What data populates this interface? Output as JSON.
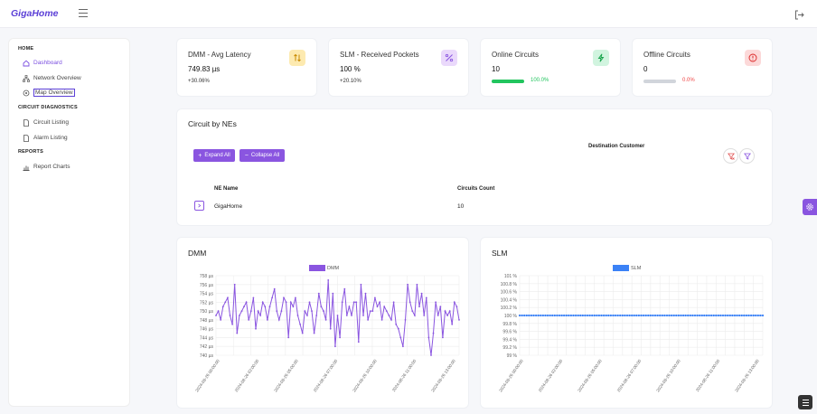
{
  "app": {
    "logo": "GigaHome"
  },
  "sidebar": {
    "sections": [
      {
        "title": "HOME",
        "items": [
          {
            "label": "Dashboard",
            "icon": "home-icon"
          },
          {
            "label": "Network Overview",
            "icon": "network-icon"
          },
          {
            "label": "Map Overview",
            "icon": "map-pin-icon"
          }
        ]
      },
      {
        "title": "CIRCUIT DIAGNOSTICS",
        "items": [
          {
            "label": "Circuit Listing",
            "icon": "file-icon"
          },
          {
            "label": "Alarm Listing",
            "icon": "file-icon"
          }
        ]
      },
      {
        "title": "REPORTS",
        "items": [
          {
            "label": "Report Charts",
            "icon": "bar-chart-icon"
          }
        ]
      }
    ]
  },
  "kpis": [
    {
      "title": "DMM - Avg Latency",
      "value": "749.83 µs",
      "sub": "+30.06%",
      "icon": "sort-arrows-icon",
      "icon_bg": "#fdeab0",
      "icon_color": "#c98a00"
    },
    {
      "title": "SLM - Received Pockets",
      "value": "100 %",
      "sub": "+20.10%",
      "icon": "percent-icon",
      "icon_bg": "#ead9fb",
      "icon_color": "#8a55e0"
    },
    {
      "title": "Online Circuits",
      "value": "10",
      "pct": "100.0%",
      "fill": 1.0,
      "bar_color": "#22c55e",
      "pct_color": "#22c55e",
      "icon": "lightning-icon",
      "icon_bg": "#d1f4df",
      "icon_color": "#16a34a"
    },
    {
      "title": "Offline Circuits",
      "value": "0",
      "pct": "0.0%",
      "fill": 0.0,
      "bar_color": "#ef4444",
      "pct_color": "#ef4444",
      "icon": "alert-circle-icon",
      "icon_bg": "#fcd9d9",
      "icon_color": "#dc2626"
    }
  ],
  "circuits": {
    "title": "Circuit by NEs",
    "expand_label": "Expand All",
    "collapse_label": "Collapse All",
    "destination_label": "Destination Customer",
    "columns": [
      "NE Name",
      "Circuits Count"
    ],
    "rows": [
      {
        "ne": "GigaHome",
        "count": "10"
      }
    ]
  },
  "colors": {
    "accent": "#8a55e0",
    "dmm_line": "#8a55e0",
    "slm_line": "#3b82f6"
  },
  "chart_data": [
    {
      "type": "line",
      "title": "DMM",
      "legend": "top-center",
      "series": [
        {
          "name": "DMM",
          "values": [
            749,
            750,
            748,
            751,
            752,
            753,
            749,
            747,
            756,
            745,
            749,
            750,
            751,
            752,
            748,
            750,
            753,
            746,
            750,
            749,
            752,
            751,
            748,
            751,
            753,
            755,
            750,
            748,
            750,
            753,
            752,
            744,
            752,
            751,
            753,
            749,
            747,
            745,
            750,
            749,
            752,
            750,
            745,
            749,
            754,
            751,
            750,
            748,
            757,
            746,
            754,
            742,
            749,
            744,
            752,
            755,
            749,
            751,
            749,
            752,
            752,
            743,
            756,
            749,
            754,
            748,
            750,
            750,
            753,
            751,
            752,
            748,
            751,
            750,
            749,
            748,
            752,
            747,
            746,
            744,
            742,
            748,
            756,
            752,
            750,
            749,
            756,
            751,
            754,
            749,
            753,
            744,
            740,
            745,
            752,
            749,
            751,
            744,
            750,
            749,
            750,
            747,
            752,
            751,
            748
          ]
        }
      ],
      "xlabels": [
        "2024-08-26 00:00:00",
        "2024-08-26 02:00:00",
        "2024-08-26 05:00:00",
        "2024-08-26 07:00:00",
        "2024-08-26 10:00:00",
        "2024-08-26 11:00:00",
        "2024-08-26 13:00:00"
      ],
      "yticks": [
        "758 µs",
        "756 µs",
        "754 µs",
        "752 µs",
        "750 µs",
        "748 µs",
        "746 µs",
        "744 µs",
        "742 µs",
        "740 µs"
      ],
      "ylim": [
        740,
        758
      ]
    },
    {
      "type": "line",
      "title": "SLM",
      "legend": "top-center",
      "series": [
        {
          "name": "SLM",
          "values": [
            100,
            100,
            100,
            100,
            100,
            100,
            100,
            100,
            100,
            100,
            100,
            100,
            100,
            100,
            100,
            100,
            100,
            100,
            100,
            100,
            100,
            100,
            100,
            100,
            100,
            100,
            100,
            100,
            100,
            100,
            100,
            100,
            100,
            100,
            100,
            100,
            100,
            100,
            100,
            100,
            100,
            100,
            100,
            100,
            100,
            100,
            100,
            100,
            100,
            100,
            100,
            100,
            100,
            100,
            100,
            100,
            100,
            100,
            100,
            100,
            100,
            100,
            100,
            100,
            100,
            100,
            100,
            100,
            100,
            100,
            100,
            100,
            100,
            100,
            100,
            100,
            100,
            100,
            100,
            100,
            100,
            100,
            100,
            100,
            100,
            100,
            100,
            100,
            100,
            100,
            100,
            100,
            100,
            100,
            100,
            100,
            100,
            100,
            100,
            100,
            100,
            100,
            100,
            100,
            100
          ]
        }
      ],
      "xlabels": [
        "2024-08-26 00:00:00",
        "2024-08-26 02:00:00",
        "2024-08-26 05:00:00",
        "2024-08-26 07:00:00",
        "2024-08-26 10:00:00",
        "2024-08-26 11:00:00",
        "2024-08-26 13:00:00"
      ],
      "yticks": [
        "101 %",
        "100.8 %",
        "100.6 %",
        "100.4 %",
        "100.2 %",
        "100 %",
        "99.8 %",
        "99.6 %",
        "99.4 %",
        "99.2 %",
        "99 %"
      ],
      "ylim": [
        99,
        101
      ]
    }
  ]
}
